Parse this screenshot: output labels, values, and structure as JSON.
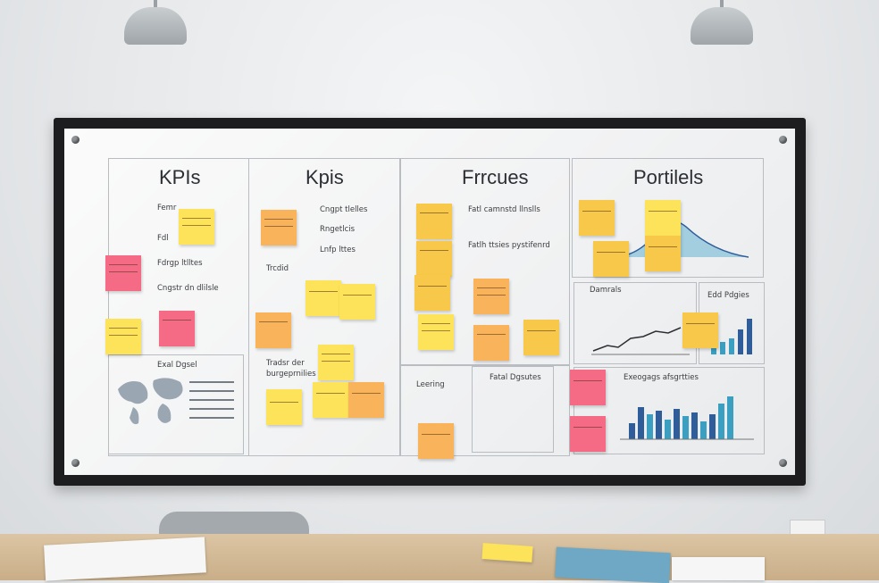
{
  "board": {
    "sections": [
      {
        "title": "KPIs",
        "items": [
          "Femr",
          "Fdl",
          "Fdrgp ltlltes",
          "Cngstr dn dlilsle"
        ]
      },
      {
        "title": "Kpis",
        "items": [
          "Cngpt tlelles",
          "Rngetlcis",
          "Lnfp lttes",
          "Trcdid",
          "Tradsr der",
          "burgeprnilies"
        ]
      },
      {
        "title": "Frrcues",
        "items": [
          "Fatl camnstd llnslls",
          "Fatlh ttsies pystifenrd",
          "Leering",
          "Fatal Dgsutes"
        ]
      },
      {
        "title": "Portilels",
        "items": [
          "Damrals",
          "Edd Pdgies",
          "Exeogags afsgrtties"
        ]
      }
    ],
    "map_label": "Exal Dgsel"
  },
  "colors": {
    "yellow": "#fde35a",
    "orange": "#f9b35a",
    "pink": "#f56b86",
    "teal": "#3a9fc0",
    "navy": "#2e5d99"
  }
}
